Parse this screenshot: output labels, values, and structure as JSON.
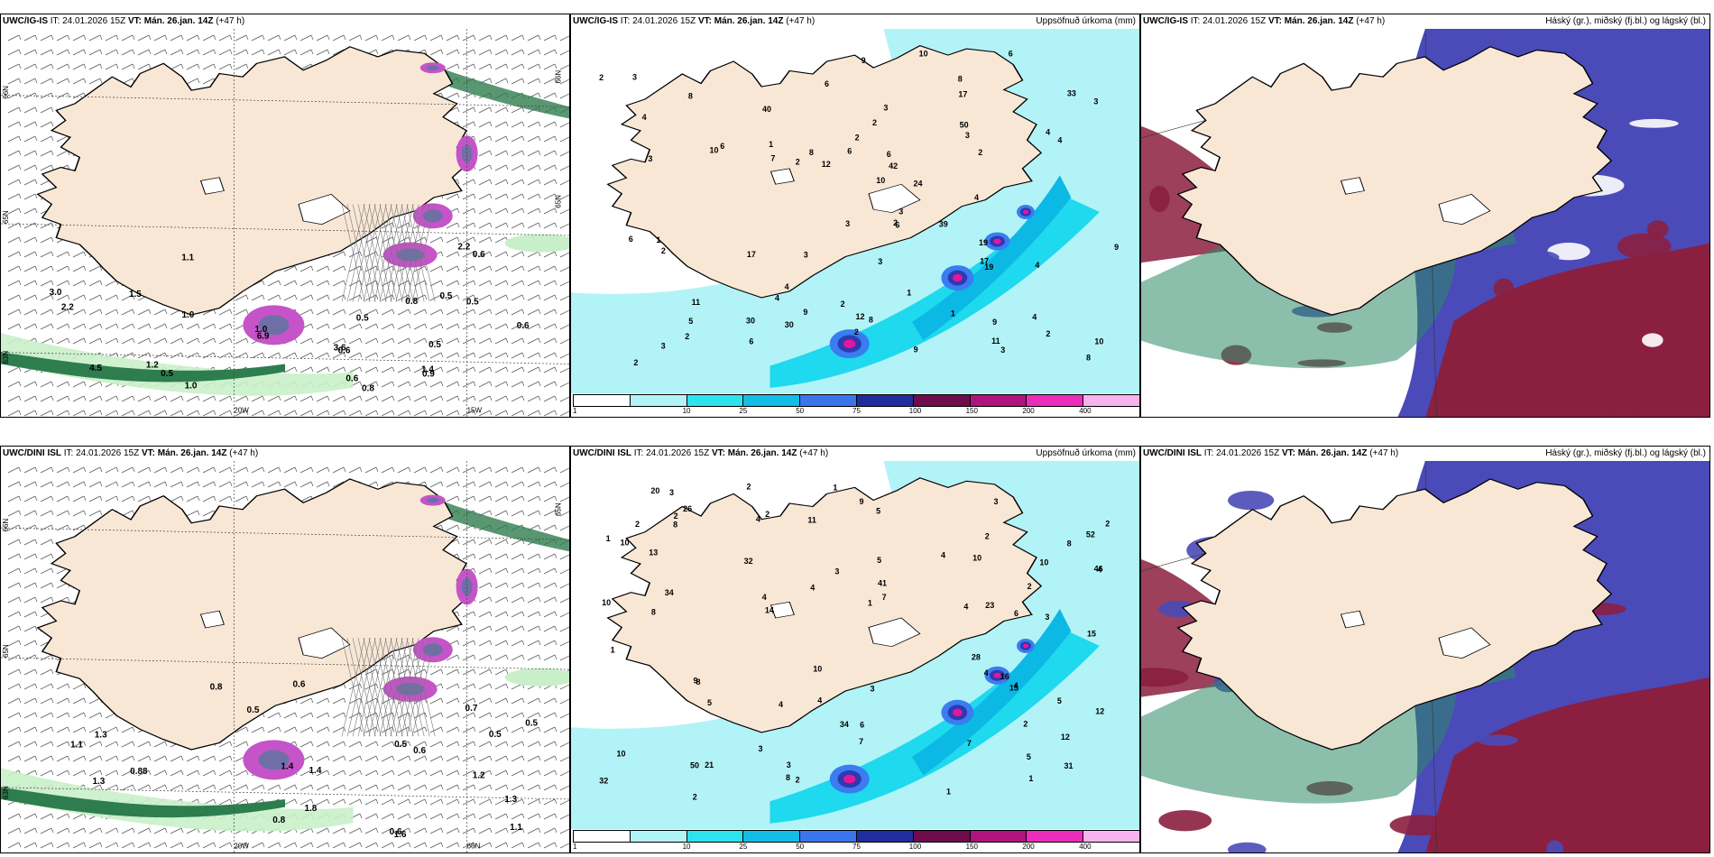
{
  "colors": {
    "land": "#f9e7d6",
    "coast": "#000000",
    "wind_green_light": "#c9efc9",
    "wind_green_dark": "#2e7d4f",
    "precip_light": "#b2f3f7",
    "precip_cyan": "#1fd9ee",
    "precip_mid": "#0cb8e4",
    "precip_blue": "#3a7df0",
    "precip_dark": "#2d3ab2",
    "precip_maroon": "#7a1650",
    "precip_magenta": "#e5169a",
    "cloud_high": "#2e8b66",
    "cloud_mid": "#8b1f3f",
    "cloud_low": "#4a4ab8"
  },
  "legend": {
    "labels": [
      "1",
      "10",
      "25",
      "50",
      "75",
      "100",
      "150",
      "200",
      "400"
    ],
    "colors": [
      "#ffffff",
      "#b2f3f7",
      "#2de3ee",
      "#12bde6",
      "#3b75ee",
      "#1f2e9e",
      "#6e0c4c",
      "#b0137e",
      "#ec2dba",
      "#f7b3ee"
    ]
  },
  "rows": [
    {
      "model": "UWC/IG-IS",
      "panels": [
        {
          "kind": "wind",
          "it_label": "IT:",
          "it_value": "24.01.2026 15Z",
          "vt_label": "VT:",
          "vt_value": "Mán. 26.jan. 14Z",
          "lead": "(+47 h)",
          "right_title": "",
          "grid_labels": [
            "66N",
            "65N",
            "63N",
            "20W",
            "15W",
            "66N",
            "65N"
          ],
          "values": [
            "0.8",
            "1.1",
            "1.2",
            "1.5",
            "0.5",
            "0.6",
            "0.6",
            "1.0",
            "6.9",
            "0.5",
            "4.5",
            "3.0",
            "1.0",
            "3.6",
            "0.8",
            "2.2",
            "2.2",
            "0.6",
            "0.5",
            "0.5",
            "1.4",
            "0.6",
            "1.0",
            "0.9",
            "0.5"
          ]
        },
        {
          "kind": "precip",
          "it_label": "IT:",
          "it_value": "24.01.2026 15Z",
          "vt_label": "VT:",
          "vt_value": "Mán. 26.jan. 14Z",
          "lead": "(+47 h)",
          "right_title": "Uppsöfnuð úrkoma (mm)",
          "values": [
            "3",
            "4",
            "3",
            "3",
            "6",
            "10",
            "4",
            "8",
            "9",
            "4",
            "8",
            "7",
            "9",
            "9",
            "1",
            "1",
            "17",
            "2",
            "3",
            "3",
            "2",
            "2",
            "2",
            "39",
            "19",
            "17",
            "8",
            "2",
            "4",
            "1",
            "2",
            "3",
            "3",
            "2",
            "2",
            "9",
            "12",
            "2",
            "3",
            "2",
            "10",
            "4",
            "40",
            "30",
            "4",
            "2",
            "2",
            "8",
            "9",
            "10",
            "4",
            "6",
            "3",
            "11",
            "11",
            "8",
            "4",
            "12",
            "24",
            "19",
            "42",
            "50",
            "3",
            "33",
            "3",
            "1",
            "6",
            "5",
            "6",
            "6",
            "6",
            "6",
            "10",
            "17",
            "30",
            "6"
          ]
        },
        {
          "kind": "cloud",
          "it_label": "IT:",
          "it_value": "24.01.2026 15Z",
          "vt_label": "VT:",
          "vt_value": "Mán. 26.jan. 14Z",
          "lead": "(+47 h)",
          "right_title": "Háský (gr.), miðský (fj.bl.) og lágský (bl.)"
        }
      ]
    },
    {
      "model": "UWC/DINI ISL",
      "panels": [
        {
          "kind": "wind",
          "it_label": "IT:",
          "it_value": "24.01.2026 15Z",
          "vt_label": "VT:",
          "vt_value": "Mán. 26.jan. 14Z",
          "lead": "(+47 h)",
          "right_title": "",
          "grid_labels": [
            "66N",
            "65N",
            "63N",
            "20W",
            "66N",
            "65N"
          ],
          "values": [
            "1.3",
            "1.2",
            "0.7",
            "0.5",
            "0.5",
            "0.6",
            "0.5",
            "0.88",
            "1.4",
            "0.8",
            "0.6",
            "0.5",
            "0.6",
            "1.6",
            "1.8",
            "1.3",
            "1.3",
            "0.8",
            "1.1",
            "1.1",
            "1.4"
          ]
        },
        {
          "kind": "precip",
          "it_label": "IT:",
          "it_value": "24.01.2026 15Z",
          "vt_label": "VT:",
          "vt_value": "Mán. 26.jan. 14Z",
          "lead": "(+47 h)",
          "right_title": "Uppsöfnuð úrkoma (mm)",
          "values": [
            "2",
            "2",
            "3",
            "2",
            "1",
            "5",
            "4",
            "8",
            "2",
            "5",
            "3",
            "4",
            "10",
            "4",
            "5",
            "5",
            "4",
            "8",
            "1",
            "1",
            "3",
            "2",
            "2",
            "1",
            "2",
            "4",
            "2",
            "4",
            "21",
            "32",
            "1",
            "3",
            "2",
            "12",
            "10",
            "9",
            "2",
            "6",
            "11",
            "34",
            "8",
            "9",
            "41",
            "14",
            "50",
            "52",
            "28",
            "10",
            "4",
            "5",
            "3",
            "10",
            "8",
            "16",
            "4",
            "10",
            "46",
            "20",
            "4",
            "10",
            "3",
            "12",
            "32",
            "6",
            "31",
            "13",
            "34",
            "1",
            "4",
            "15",
            "7",
            "7",
            "8",
            "3",
            "26",
            "23",
            "15",
            "7"
          ]
        },
        {
          "kind": "cloud",
          "it_label": "IT:",
          "it_value": "24.01.2026 15Z",
          "vt_label": "VT:",
          "vt_value": "Mán. 26.jan. 14Z",
          "lead": "(+47 h)",
          "right_title": "Háský (gr.), miðský (fj.bl.) og lágský (bl.)"
        }
      ]
    }
  ]
}
